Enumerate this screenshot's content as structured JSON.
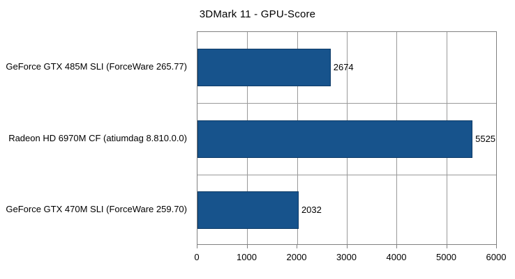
{
  "title": "3DMark 11 - GPU-Score",
  "chart_data": {
    "type": "bar",
    "orientation": "horizontal",
    "title": "3DMark 11 - GPU-Score",
    "categories": [
      "GeForce GTX 485M SLI (ForceWare 265.77)",
      "Radeon HD 6970M CF (atiumdag 8.810.0.0)",
      "GeForce GTX 470M SLI (ForceWare 259.70)"
    ],
    "values": [
      2674,
      5525,
      2032
    ],
    "value_labels": [
      "2674",
      "5525",
      "2032"
    ],
    "xlabel": "",
    "ylabel": "",
    "xlim": [
      0,
      6000
    ],
    "xticks": [
      0,
      1000,
      2000,
      3000,
      4000,
      5000,
      6000
    ],
    "grid": true,
    "legend": "none",
    "bar_color": "#17538c",
    "bar_border_color": "#0d3a66",
    "grid_color": "#999999",
    "axis_color": "#808080"
  }
}
